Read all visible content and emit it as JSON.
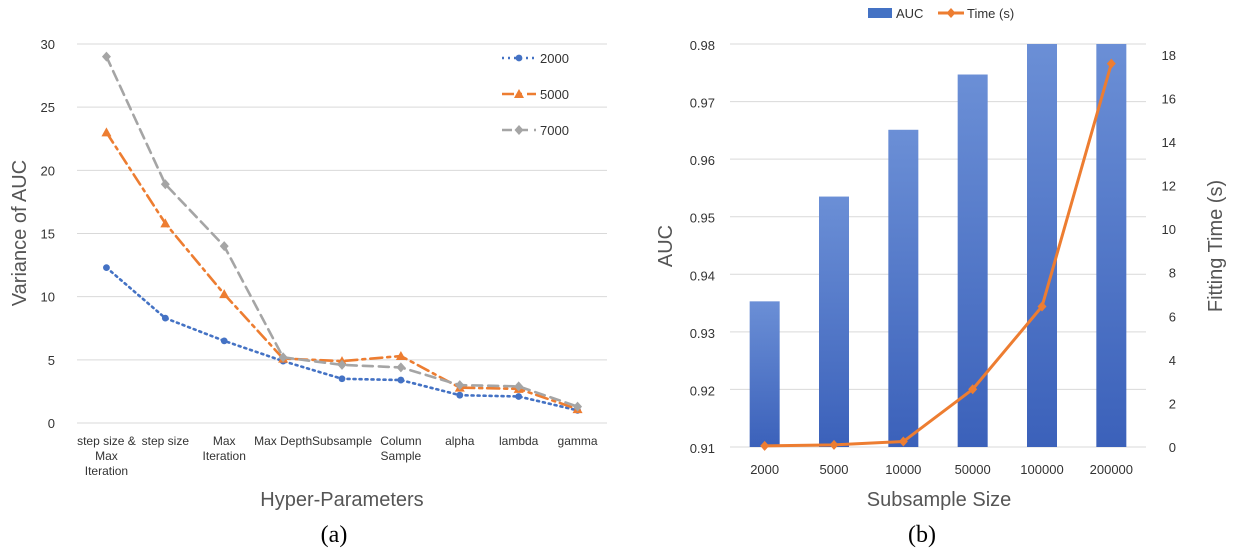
{
  "chart_data": [
    {
      "type": "line",
      "panel_label": "(a)",
      "xlabel": "Hyper-Parameters",
      "ylabel": "Variance of  AUC",
      "categories": [
        [
          "step size &",
          "Max",
          "Iteration"
        ],
        [
          "step size"
        ],
        [
          "Max",
          "Iteration"
        ],
        [
          "Max Depth"
        ],
        [
          "Subsample"
        ],
        [
          "Column",
          "Sample"
        ],
        [
          "alpha"
        ],
        [
          "lambda"
        ],
        [
          "gamma"
        ]
      ],
      "ylim": [
        0,
        30
      ],
      "yticks": [
        0,
        5,
        10,
        15,
        20,
        25,
        30
      ],
      "grid": true,
      "legend_position": "top-right",
      "series": [
        {
          "name": "2000",
          "color": "#4472C4",
          "marker": "circle",
          "dash": "dotted",
          "values": [
            12.3,
            8.3,
            6.5,
            4.9,
            3.5,
            3.4,
            2.2,
            2.1,
            1.0
          ]
        },
        {
          "name": "5000",
          "color": "#ED7D31",
          "marker": "triangle",
          "dash": "dash-dot",
          "values": [
            23.0,
            15.8,
            10.2,
            5.1,
            4.9,
            5.3,
            2.8,
            2.7,
            1.1
          ]
        },
        {
          "name": "7000",
          "color": "#A5A5A5",
          "marker": "diamond",
          "dash": "dashed",
          "values": [
            29.0,
            18.9,
            14.0,
            5.2,
            4.6,
            4.4,
            3.0,
            2.9,
            1.3
          ]
        }
      ]
    },
    {
      "type": "bar",
      "panel_label": "(b)",
      "xlabel": "Subsample Size",
      "ylabel": "AUC",
      "y2label": "Fitting Time (s)",
      "categories": [
        "2000",
        "5000",
        "10000",
        "50000",
        "100000",
        "200000"
      ],
      "ylim": [
        0.91,
        0.98
      ],
      "yticks": [
        "0.91",
        "0.92",
        "0.93",
        "0.94",
        "0.95",
        "0.96",
        "0.97",
        "0.98"
      ],
      "y2lim": [
        0,
        18.5
      ],
      "y2ticks": [
        0,
        2,
        4,
        6,
        8,
        10,
        12,
        14,
        16,
        18
      ],
      "grid": true,
      "legend_position": "top",
      "series": [
        {
          "name": "AUC",
          "kind": "bar",
          "axis": "left",
          "color": "#4472C4",
          "values": [
            0.9353,
            0.9535,
            0.9651,
            0.9747,
            0.98,
            0.98
          ]
        },
        {
          "name": "Time (s)",
          "kind": "line",
          "axis": "right",
          "color": "#ED7D31",
          "marker": "diamond",
          "values": [
            0.05,
            0.1,
            0.25,
            2.65,
            6.45,
            17.6
          ]
        }
      ]
    }
  ]
}
